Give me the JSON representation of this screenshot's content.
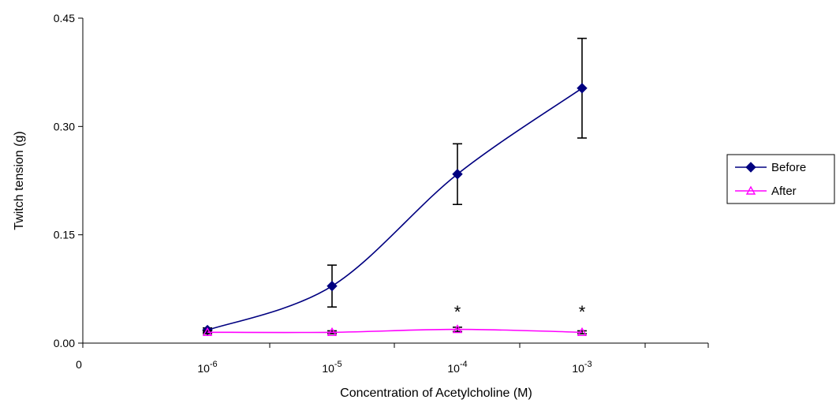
{
  "chart_data": {
    "type": "line",
    "title": "",
    "xlabel": "Concentration of Acetylcholine (M)",
    "ylabel": "Twitch tension (g)",
    "x_origin_label": "0",
    "x_categories": [
      {
        "base": "10",
        "exp": "-6"
      },
      {
        "base": "10",
        "exp": "-5"
      },
      {
        "base": "10",
        "exp": "-4"
      },
      {
        "base": "10",
        "exp": "-3"
      }
    ],
    "ylim": [
      0,
      0.45
    ],
    "yticks": [
      "0.00",
      "0.15",
      "0.30",
      "0.45"
    ],
    "ytick_values": [
      0,
      0.15,
      0.3,
      0.45
    ],
    "grid": false,
    "legend_position": "right",
    "series": [
      {
        "name": "Before",
        "color": "#000080",
        "marker": "diamond",
        "values": [
          0.018,
          0.079,
          0.234,
          0.353
        ],
        "error": [
          0.003,
          0.029,
          0.042,
          0.069
        ]
      },
      {
        "name": "After",
        "color": "#FF00FF",
        "marker": "triangle",
        "values": [
          0.015,
          0.015,
          0.019,
          0.015
        ],
        "error": [
          0.002,
          0.002,
          0.003,
          0.002
        ]
      }
    ],
    "annotations": [
      {
        "text": "*",
        "category_index": 2
      },
      {
        "text": "*",
        "category_index": 3
      }
    ]
  }
}
